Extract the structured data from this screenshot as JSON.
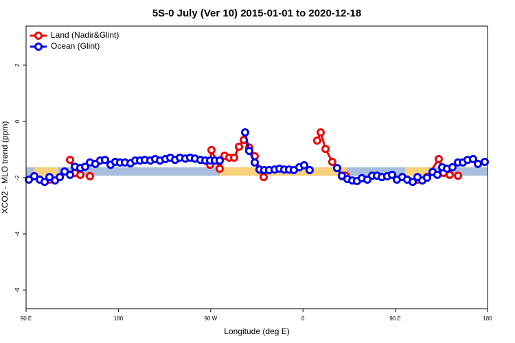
{
  "chart_data": {
    "type": "line",
    "title": "5S-0 July (Ver 10)   2015-01-01 to 2020-12-18",
    "x_label": "Longitude (deg E)",
    "y_label": "XCO2 - MLO trend (ppm)",
    "xlim": [
      90,
      540
    ],
    "ylim": [
      -6.66,
      3.39
    ],
    "xticks": [
      {
        "value": 90,
        "label": "90 E"
      },
      180,
      {
        "value": 270,
        "label": "90 W"
      },
      {
        "value": 360,
        "label": "0"
      },
      {
        "value": 450,
        "label": "90 E"
      },
      {
        "value": 540,
        "label": "180"
      }
    ],
    "yticks": [
      2,
      0,
      -2,
      -4,
      -6
    ],
    "legend": "top-left",
    "bands": [
      {
        "color": "#a7bedc",
        "x": [
          90,
          540
        ],
        "y": [
          -1.93,
          -1.63
        ]
      },
      {
        "color": "#f7d27a",
        "x": [
          98,
          121.5
        ],
        "y": [
          -1.93,
          -1.63
        ]
      },
      {
        "color": "#f7d27a",
        "x": [
          278.8,
          402.7
        ],
        "y": [
          -1.93,
          -1.63
        ]
      },
      {
        "color": "#f7d27a",
        "x": [
          459.6,
          483
        ],
        "y": [
          -1.93,
          -1.63
        ]
      }
    ],
    "series": [
      {
        "name": "Land (Nadir&Glint)",
        "color": "#ee0000",
        "x": [
          112.8,
          null,
          132.9,
          137.6,
          142.9,
          null,
          152.3,
          null,
          269.5,
          270.8,
          278.8,
          283.5,
          288.2,
          292.9,
          297.6,
          302.3,
          307.6,
          313.0,
          317.7,
          321.7,
          null,
          373.9,
          377.3,
          382.0,
          388.6,
          393.3,
          398.0,
          401.4,
          null,
          471.7,
          481.0,
          492.4,
          497.1,
          503.1,
          null,
          511.2
        ],
        "values": [
          -2.07,
          null,
          -1.37,
          -1.83,
          -1.9,
          null,
          -1.95,
          null,
          -1.54,
          -1.02,
          -1.68,
          -1.22,
          -1.29,
          -1.29,
          -0.9,
          -0.66,
          -0.93,
          -1.24,
          -1.71,
          -1.98,
          null,
          -0.68,
          -0.39,
          -0.98,
          -1.44,
          -1.66,
          -1.95,
          -1.93,
          null,
          -2.07,
          -1.98,
          -1.34,
          -1.83,
          -1.9,
          null,
          -1.93
        ]
      },
      {
        "name": "Ocean (Glint)",
        "color": "#0000ee",
        "x": [
          92.7,
          98.0,
          103.4,
          108.1,
          112.8,
          118.2,
          122.9,
          127.6,
          132.9,
          137.6,
          142.9,
          147.6,
          152.3,
          157.6,
          162.3,
          167.0,
          172.4,
          177.0,
          181.7,
          186.4,
          191.8,
          196.5,
          201.2,
          205.8,
          211.2,
          215.9,
          220.6,
          225.9,
          230.6,
          235.3,
          240.0,
          245.3,
          250.0,
          254.7,
          260.1,
          264.8,
          269.5,
          274.1,
          278.8,
          null,
          303.6,
          307.6,
          313.0,
          317.7,
          322.3,
          327.0,
          332.4,
          337.1,
          341.8,
          346.5,
          351.1,
          356.5,
          361.2,
          366.5,
          null,
          393.3,
          398.0,
          403.4,
          408.1,
          412.7,
          417.4,
          422.8,
          427.5,
          432.2,
          436.9,
          442.2,
          446.9,
          451.6,
          456.9,
          461.6,
          467.0,
          471.7,
          476.4,
          481.0,
          486.4,
          491.1,
          495.8,
          500.5,
          505.8,
          511.2,
          515.9,
          520.5,
          525.9,
          530.6,
          537.3
        ],
        "values": [
          -2.07,
          -1.95,
          -2.07,
          -2.15,
          -1.98,
          -2.1,
          -1.98,
          -1.78,
          -1.9,
          -1.61,
          -1.66,
          -1.61,
          -1.46,
          -1.51,
          -1.39,
          -1.37,
          -1.54,
          -1.44,
          -1.46,
          -1.46,
          -1.49,
          -1.39,
          -1.39,
          -1.37,
          -1.39,
          -1.34,
          -1.39,
          -1.34,
          -1.29,
          -1.37,
          -1.29,
          -1.32,
          -1.29,
          -1.32,
          -1.37,
          -1.39,
          -1.39,
          -1.39,
          -1.39,
          null,
          -0.39,
          -1.05,
          -1.46,
          -1.71,
          -1.73,
          -1.73,
          -1.71,
          -1.68,
          -1.71,
          -1.71,
          -1.73,
          -1.63,
          -1.56,
          -1.73,
          null,
          -1.66,
          -1.93,
          -2.05,
          -2.1,
          -2.12,
          -2.02,
          -2.07,
          -1.93,
          -1.93,
          -1.98,
          -1.95,
          -1.9,
          -2.07,
          -1.98,
          -2.07,
          -2.15,
          -1.98,
          -2.1,
          -2.0,
          -1.8,
          -1.9,
          -1.63,
          -1.68,
          -1.63,
          -1.46,
          -1.46,
          -1.37,
          -1.34,
          -1.51,
          -1.44
        ]
      }
    ]
  }
}
